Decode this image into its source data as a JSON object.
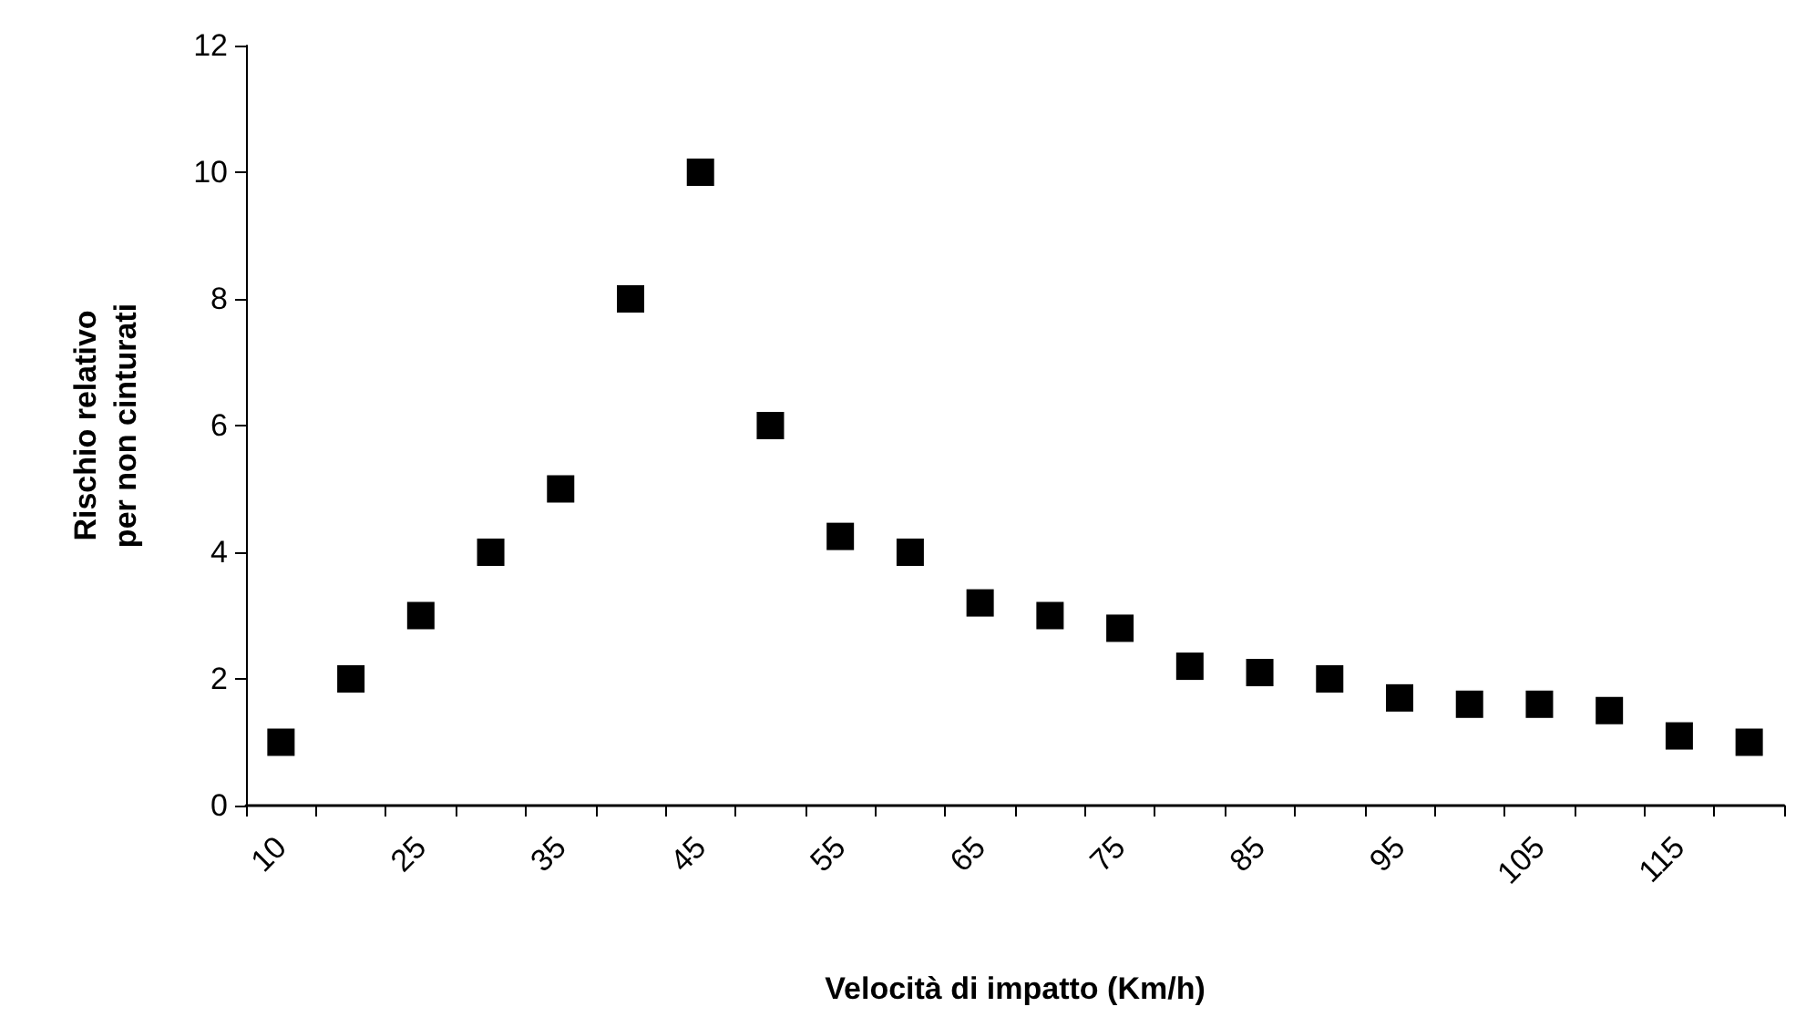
{
  "chart_data": {
    "type": "scatter",
    "xlabel": "Velocità di impatto (Km/h)",
    "ylabel": "Rischio relativo\nper non cinturati",
    "categories": [
      "10",
      null,
      "25",
      null,
      "35",
      null,
      "45",
      null,
      "55",
      null,
      "65",
      null,
      "75",
      null,
      "85",
      null,
      "95",
      null,
      "105",
      null,
      "115",
      null
    ],
    "series": [
      {
        "color": "#000000",
        "values": [
          1,
          2,
          3,
          4,
          5,
          8,
          10,
          6,
          4.25,
          4,
          3.2,
          3,
          2.8,
          2.2,
          2.1,
          2,
          1.7,
          1.6,
          1.6,
          1.5,
          1.1,
          1
        ]
      }
    ],
    "ylim": [
      0,
      12
    ],
    "yticks": [
      0,
      2,
      4,
      6,
      8,
      10,
      12
    ],
    "grid": false,
    "marker": "square"
  }
}
